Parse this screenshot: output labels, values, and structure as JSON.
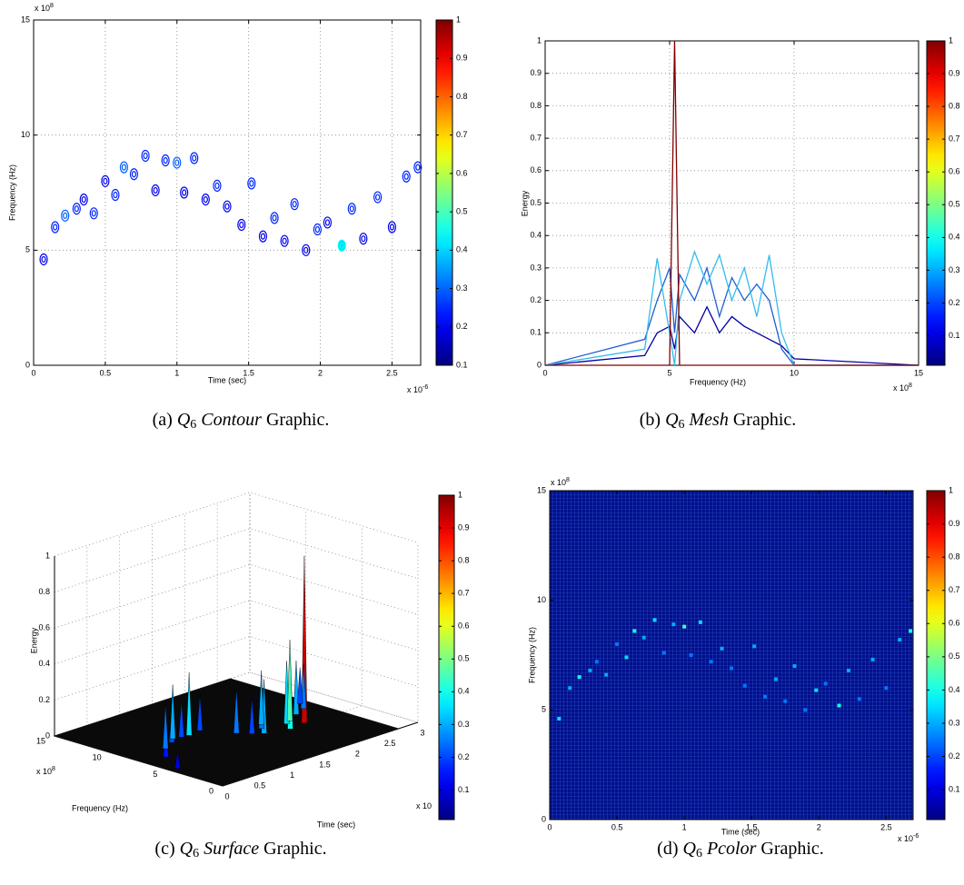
{
  "chart_data": [
    {
      "type": "contour",
      "xlabel": "Time (sec)",
      "ylabel": "Frequency (Hz)",
      "x_exponent": {
        "base": "x 10",
        "power": "-6"
      },
      "y_exponent": {
        "base": "x 10",
        "power": "8"
      },
      "xlim": [
        0,
        2.7
      ],
      "xticks": [
        0,
        0.5,
        1,
        1.5,
        2,
        2.5
      ],
      "ylim": [
        0,
        15
      ],
      "yticks": [
        0,
        5,
        10,
        15
      ],
      "grid": true,
      "colormap": "jet",
      "clim": [
        0.1,
        1
      ],
      "cticks": [
        0.1,
        0.2,
        0.3,
        0.4,
        0.5,
        0.6,
        0.7,
        0.8,
        0.9,
        1
      ],
      "x": [
        0.07,
        0.15,
        0.22,
        0.3,
        0.35,
        0.42,
        0.5,
        0.57,
        0.63,
        0.7,
        0.78,
        0.85,
        0.92,
        1.0,
        1.05,
        1.12,
        1.2,
        1.28,
        1.35,
        1.45,
        1.52,
        1.6,
        1.68,
        1.75,
        1.82,
        1.9,
        1.98,
        2.05,
        2.15,
        2.22,
        2.3,
        2.4,
        2.5,
        2.6,
        2.68
      ],
      "y": [
        4.6,
        6.0,
        6.5,
        6.8,
        7.2,
        6.6,
        8.0,
        7.4,
        8.6,
        8.3,
        9.1,
        7.6,
        8.9,
        8.8,
        7.5,
        9.0,
        7.2,
        7.8,
        6.9,
        6.1,
        7.9,
        5.6,
        6.4,
        5.4,
        7.0,
        5.0,
        5.9,
        6.2,
        5.2,
        6.8,
        5.5,
        7.3,
        6.0,
        8.2,
        8.6
      ],
      "values": [
        0.15,
        0.2,
        0.25,
        0.2,
        0.15,
        0.2,
        0.15,
        0.2,
        0.25,
        0.2,
        0.2,
        0.15,
        0.2,
        0.25,
        0.15,
        0.2,
        0.15,
        0.2,
        0.15,
        0.15,
        0.2,
        0.15,
        0.2,
        0.15,
        0.2,
        0.15,
        0.2,
        0.15,
        0.4,
        0.2,
        0.15,
        0.2,
        0.15,
        0.2,
        0.2
      ],
      "caption": {
        "label": "(a)",
        "symbol": "Q",
        "subscript": "6",
        "name": "Contour",
        "suffix": "Graphic."
      }
    },
    {
      "type": "mesh",
      "xlabel": "Frequency (Hz)",
      "ylabel": "Energy",
      "x_exponent": {
        "base": "x 10",
        "power": "8"
      },
      "xlim": [
        0,
        15
      ],
      "xticks": [
        0,
        5,
        10,
        15
      ],
      "ylim": [
        0,
        1
      ],
      "yticks": [
        0,
        0.1,
        0.2,
        0.3,
        0.4,
        0.5,
        0.6,
        0.7,
        0.8,
        0.9,
        1
      ],
      "grid": true,
      "colormap": "jet",
      "clim": [
        0.01,
        1
      ],
      "cticks": [
        0.1,
        0.2,
        0.3,
        0.4,
        0.5,
        0.6,
        0.7,
        0.8,
        0.9,
        1
      ],
      "x": [
        0,
        4,
        4.5,
        5,
        5.2,
        5.4,
        6,
        6.5,
        7,
        7.5,
        8,
        8.5,
        9,
        9.5,
        10,
        15
      ],
      "series": [
        {
          "color": "#0000a0",
          "values": [
            0,
            0.03,
            0.1,
            0.12,
            0.05,
            0.15,
            0.1,
            0.18,
            0.1,
            0.15,
            0.12,
            0.1,
            0.08,
            0.06,
            0.02,
            0
          ]
        },
        {
          "color": "#1f5fd0",
          "values": [
            0,
            0.08,
            0.2,
            0.3,
            0.1,
            0.28,
            0.2,
            0.3,
            0.15,
            0.27,
            0.2,
            0.25,
            0.2,
            0.05,
            0,
            0
          ]
        },
        {
          "color": "#33bbee",
          "values": [
            0,
            0.05,
            0.33,
            0.1,
            0,
            0.2,
            0.35,
            0.25,
            0.34,
            0.2,
            0.3,
            0.15,
            0.34,
            0.1,
            0,
            0
          ]
        },
        {
          "color": "#800000",
          "values": [
            0,
            0,
            0,
            0,
            1,
            0,
            0,
            0,
            0,
            0,
            0,
            0,
            0,
            0,
            0,
            0
          ]
        }
      ],
      "caption": {
        "label": "(b)",
        "symbol": "Q",
        "subscript": "6",
        "name": "Mesh",
        "suffix": "Graphic."
      }
    },
    {
      "type": "surface",
      "xlabel": "Time (sec)",
      "ylabel": "Frequency (Hz)",
      "zlabel": "Energy",
      "x_exponent": {
        "base": "x 10"
      },
      "y_exponent": {
        "base": "x 10",
        "power": "8"
      },
      "xlim": [
        0,
        3
      ],
      "xticks": [
        0,
        0.5,
        1,
        1.5,
        2,
        2.5,
        3
      ],
      "ylim": [
        0,
        15
      ],
      "yticks": [
        0,
        5,
        10,
        15
      ],
      "zlim": [
        0,
        1
      ],
      "zticks": [
        0,
        0.2,
        0.4,
        0.6,
        0.8,
        1
      ],
      "grid": true,
      "colormap": "jet",
      "clim": [
        0.01,
        1
      ],
      "cticks": [
        0.1,
        0.2,
        0.3,
        0.4,
        0.5,
        0.6,
        0.7,
        0.8,
        0.9,
        1
      ],
      "x": [
        0.1,
        0.3,
        0.5,
        0.7,
        0.8,
        0.9,
        1.0,
        1.2,
        1.4,
        1.5,
        1.6,
        1.7,
        1.8,
        1.9,
        2.0,
        2.1,
        2.15,
        2.3,
        2.5,
        2.6
      ],
      "y": [
        4.6,
        6.8,
        8.0,
        8.6,
        9.1,
        8.9,
        8.8,
        9.0,
        6.9,
        6.1,
        5.6,
        6.4,
        7.0,
        5.0,
        5.9,
        6.2,
        5.2,
        6.8,
        7.3,
        8.2
      ],
      "values": [
        0.1,
        0.15,
        0.25,
        0.2,
        0.3,
        0.2,
        0.35,
        0.2,
        0.25,
        0.2,
        0.3,
        0.25,
        0.3,
        0.4,
        0.35,
        0.45,
        0.93,
        0.3,
        0.25,
        0.2
      ],
      "caption": {
        "label": "(c)",
        "symbol": "Q",
        "subscript": "6",
        "name": "Surface",
        "suffix": "Graphic."
      }
    },
    {
      "type": "pcolor",
      "xlabel": "Time (sec)",
      "ylabel": "Frequency (Hz)",
      "x_exponent": {
        "base": "x 10",
        "power": "-6"
      },
      "y_exponent": {
        "base": "x 10",
        "power": "8"
      },
      "xlim": [
        0,
        2.7
      ],
      "xticks": [
        0,
        0.5,
        1,
        1.5,
        2,
        2.5
      ],
      "ylim": [
        0,
        15
      ],
      "yticks": [
        0,
        5,
        10,
        15
      ],
      "colormap": "jet",
      "background_color": "#00108c",
      "clim": [
        0.01,
        1
      ],
      "cticks": [
        0.1,
        0.2,
        0.3,
        0.4,
        0.5,
        0.6,
        0.7,
        0.8,
        0.9,
        1
      ],
      "x": [
        0.07,
        0.15,
        0.22,
        0.3,
        0.35,
        0.42,
        0.5,
        0.57,
        0.63,
        0.7,
        0.78,
        0.85,
        0.92,
        1.0,
        1.05,
        1.12,
        1.2,
        1.28,
        1.35,
        1.45,
        1.52,
        1.6,
        1.68,
        1.75,
        1.82,
        1.9,
        1.98,
        2.05,
        2.15,
        2.22,
        2.3,
        2.4,
        2.5,
        2.6,
        2.68
      ],
      "y": [
        4.6,
        6.0,
        6.5,
        6.8,
        7.2,
        6.6,
        8.0,
        7.4,
        8.6,
        8.3,
        9.1,
        7.6,
        8.9,
        8.8,
        7.5,
        9.0,
        7.2,
        7.8,
        6.9,
        6.1,
        7.9,
        5.6,
        6.4,
        5.4,
        7.0,
        5.0,
        5.9,
        6.2,
        5.2,
        6.8,
        5.5,
        7.3,
        6.0,
        8.2,
        8.6
      ],
      "values": [
        0.35,
        0.3,
        0.4,
        0.3,
        0.25,
        0.3,
        0.25,
        0.35,
        0.4,
        0.3,
        0.35,
        0.25,
        0.3,
        0.45,
        0.25,
        0.35,
        0.25,
        0.3,
        0.25,
        0.25,
        0.3,
        0.25,
        0.3,
        0.25,
        0.3,
        0.25,
        0.35,
        0.25,
        0.4,
        0.3,
        0.25,
        0.3,
        0.25,
        0.3,
        0.4
      ],
      "caption": {
        "label": "(d)",
        "symbol": "Q",
        "subscript": "6",
        "name": "Pcolor",
        "suffix": "Graphic."
      }
    }
  ]
}
